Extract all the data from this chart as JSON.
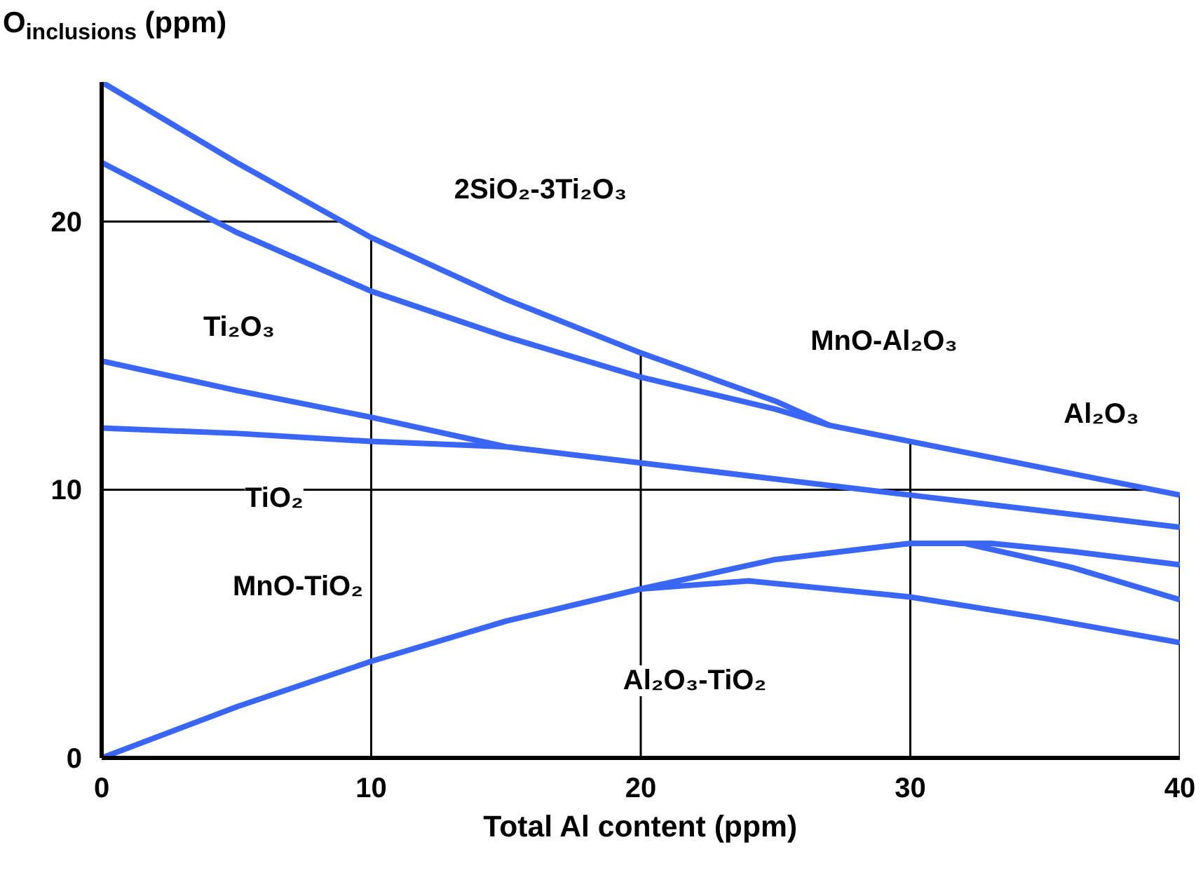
{
  "chart_data": {
    "type": "line",
    "xlabel": "Total Al content (ppm)",
    "ylabel": "O$_{inclusions}$ (ppm)",
    "xlim": [
      0,
      40
    ],
    "ylim": [
      0,
      25.2
    ],
    "xticks": [
      0,
      10,
      20,
      30,
      40
    ],
    "yticks": [
      0,
      10,
      20
    ],
    "grid": false,
    "marker": "none",
    "line_style": "solid",
    "series": [
      {
        "color": "#3a66f5",
        "x": [
          0,
          5,
          10,
          15,
          20,
          25,
          27,
          30,
          35,
          40
        ],
        "values": [
          25.2,
          22.2,
          19.4,
          17.1,
          15.1,
          13.3,
          12.4,
          11.8,
          10.8,
          9.8
        ]
      },
      {
        "color": "#3a66f5",
        "x": [
          0,
          5,
          10,
          15,
          20,
          25,
          27
        ],
        "values": [
          22.2,
          19.6,
          17.4,
          15.7,
          14.2,
          13.0,
          12.4
        ]
      },
      {
        "color": "#3a66f5",
        "x": [
          0,
          5,
          10,
          15,
          20,
          25,
          30,
          35,
          40
        ],
        "values": [
          14.8,
          13.7,
          12.7,
          11.6,
          11.0,
          10.4,
          9.8,
          9.2,
          8.6
        ]
      },
      {
        "color": "#3a66f5",
        "x": [
          0,
          5,
          10,
          15
        ],
        "values": [
          12.3,
          12.1,
          11.8,
          11.6
        ]
      },
      {
        "color": "#3a66f5",
        "x": [
          0,
          5,
          10,
          15,
          20,
          25,
          30,
          33,
          36,
          40
        ],
        "values": [
          0,
          1.9,
          3.6,
          5.1,
          6.3,
          7.4,
          8.0,
          8.0,
          7.7,
          7.2
        ]
      },
      {
        "color": "#3a66f5",
        "x": [
          20,
          24,
          30,
          35,
          40
        ],
        "values": [
          6.3,
          6.6,
          6.0,
          5.2,
          4.3
        ]
      },
      {
        "color": "#3a66f5",
        "x": [
          32,
          36,
          40
        ],
        "values": [
          8.0,
          7.1,
          5.9
        ]
      }
    ],
    "ref_lines": [
      {
        "axis": "x",
        "value": 10,
        "color": "#000000"
      },
      {
        "axis": "x",
        "value": 20,
        "color": "#000000"
      },
      {
        "axis": "x",
        "value": 30,
        "color": "#000000"
      },
      {
        "axis": "x",
        "value": 40,
        "color": "#000000"
      },
      {
        "axis": "y",
        "value": 10,
        "color": "#000000"
      },
      {
        "axis": "y",
        "value": 20,
        "color": "#000000"
      }
    ],
    "annotations": [
      "2SiO₂-3Ti₂O₃",
      "Ti₂O₃",
      "TiO₂",
      "MnO-TiO₂",
      "Al₂O₃-TiO₂",
      "MnO-Al₂O₃",
      "Al₂O₃"
    ]
  }
}
